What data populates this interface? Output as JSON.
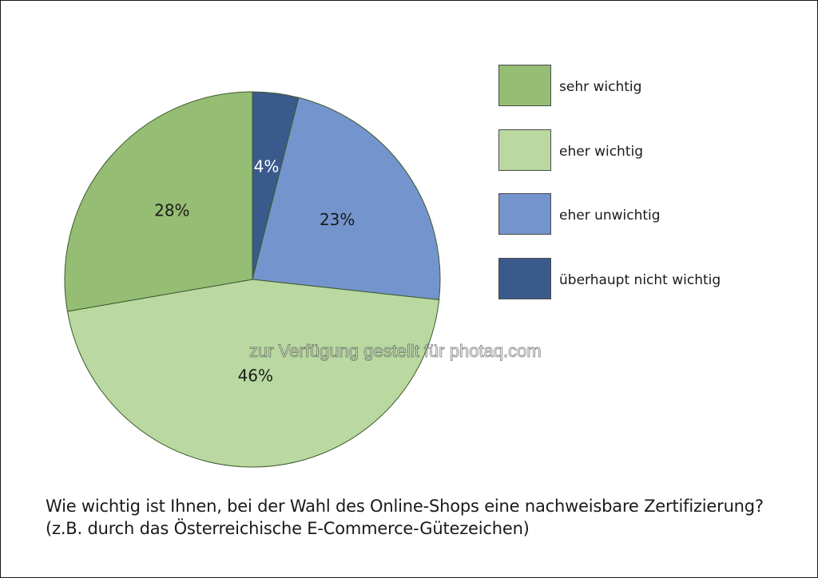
{
  "chart_data": {
    "type": "pie",
    "title": "",
    "slices": [
      {
        "label": "überhaupt nicht wichtig",
        "value": 4,
        "value_label": "4%",
        "color": "#3a5a8c"
      },
      {
        "label": "eher unwichtig",
        "value": 23,
        "value_label": "23%",
        "color": "#7394cc"
      },
      {
        "label": "eher wichtig",
        "value": 46,
        "value_label": "46%",
        "color": "#b9d9a1"
      },
      {
        "label": "sehr wichtig",
        "value": 28,
        "value_label": "28%",
        "color": "#95bd74"
      }
    ],
    "legend": {
      "placement": "right",
      "entries": [
        {
          "label": "sehr wichtig",
          "color": "#95bd74"
        },
        {
          "label": "eher wichtig",
          "color": "#b9d9a1"
        },
        {
          "label": "eher unwichtig",
          "color": "#7394cc"
        },
        {
          "label": "überhaupt nicht wichtig",
          "color": "#3a5a8c"
        }
      ]
    }
  },
  "watermark": "zur Verfügung gestellt für photaq.com",
  "caption": {
    "line1": "Wie wichtig ist Ihnen, bei der Wahl des Online-Shops eine nachweisbare Zertifizierung?",
    "line2": "(z.B. durch das Österreichische E-Commerce-Gütezeichen)"
  }
}
